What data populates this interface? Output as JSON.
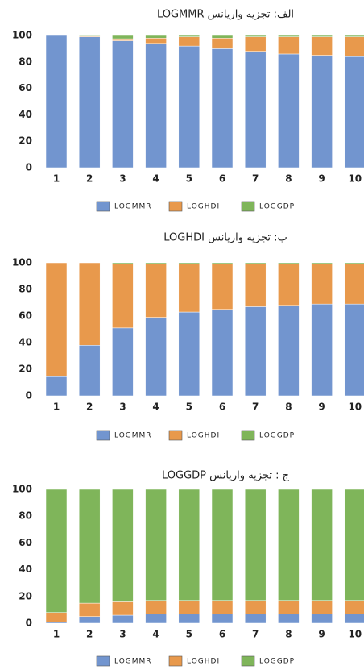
{
  "chart_data": [
    {
      "type": "bar",
      "stacked": true,
      "title": "الف: تجزیه واریانس LOGMMR",
      "categories": [
        "1",
        "2",
        "3",
        "4",
        "5",
        "6",
        "7",
        "8",
        "9",
        "10"
      ],
      "series": [
        {
          "name": "LOGMMR",
          "color": "#7295cf",
          "values": [
            100,
            99,
            96,
            94,
            92,
            90,
            88,
            86,
            85,
            84
          ]
        },
        {
          "name": "LOGHDI",
          "color": "#e8994c",
          "values": [
            0,
            0.5,
            1.5,
            4,
            7,
            8,
            11,
            13,
            14,
            15
          ]
        },
        {
          "name": "LOGGDP",
          "color": "#7fb55a",
          "values": [
            0,
            0.5,
            2.5,
            2,
            1,
            2,
            1,
            1,
            1,
            1
          ]
        }
      ],
      "ylim": [
        0,
        100
      ],
      "yticks": [
        0,
        20,
        40,
        60,
        80,
        100
      ]
    },
    {
      "type": "bar",
      "stacked": true,
      "title": "ب: تجزیه واریانس LOGHDI",
      "categories": [
        "1",
        "2",
        "3",
        "4",
        "5",
        "6",
        "7",
        "8",
        "9",
        "10"
      ],
      "series": [
        {
          "name": "LOGMMR",
          "color": "#7295cf",
          "values": [
            15,
            38,
            51,
            59,
            63,
            65,
            67,
            68,
            69,
            69
          ]
        },
        {
          "name": "LOGHDI",
          "color": "#e8994c",
          "values": [
            85,
            62,
            48,
            40,
            36,
            34,
            32,
            31,
            30,
            30
          ]
        },
        {
          "name": "LOGGDP",
          "color": "#7fb55a",
          "values": [
            0,
            0,
            1,
            1,
            1,
            1,
            1,
            1,
            1,
            1
          ]
        }
      ],
      "ylim": [
        0,
        100
      ],
      "yticks": [
        0,
        20,
        40,
        60,
        80,
        100
      ]
    },
    {
      "type": "bar",
      "stacked": true,
      "title": "ج : تجزیه واریانس LOGGDP",
      "categories": [
        "1",
        "2",
        "3",
        "4",
        "5",
        "6",
        "7",
        "8",
        "9",
        "10"
      ],
      "series": [
        {
          "name": "LOGMMR",
          "color": "#7295cf",
          "values": [
            1,
            5,
            6,
            7,
            7,
            7,
            7,
            7,
            7,
            7
          ]
        },
        {
          "name": "LOGHDI",
          "color": "#e8994c",
          "values": [
            7,
            10,
            10,
            10,
            10,
            10,
            10,
            10,
            10,
            10
          ]
        },
        {
          "name": "LOGGDP",
          "color": "#7fb55a",
          "values": [
            92,
            85,
            84,
            83,
            83,
            83,
            83,
            83,
            83,
            83
          ]
        }
      ],
      "ylim": [
        0,
        100
      ],
      "yticks": [
        0,
        20,
        40,
        60,
        80,
        100
      ]
    }
  ]
}
